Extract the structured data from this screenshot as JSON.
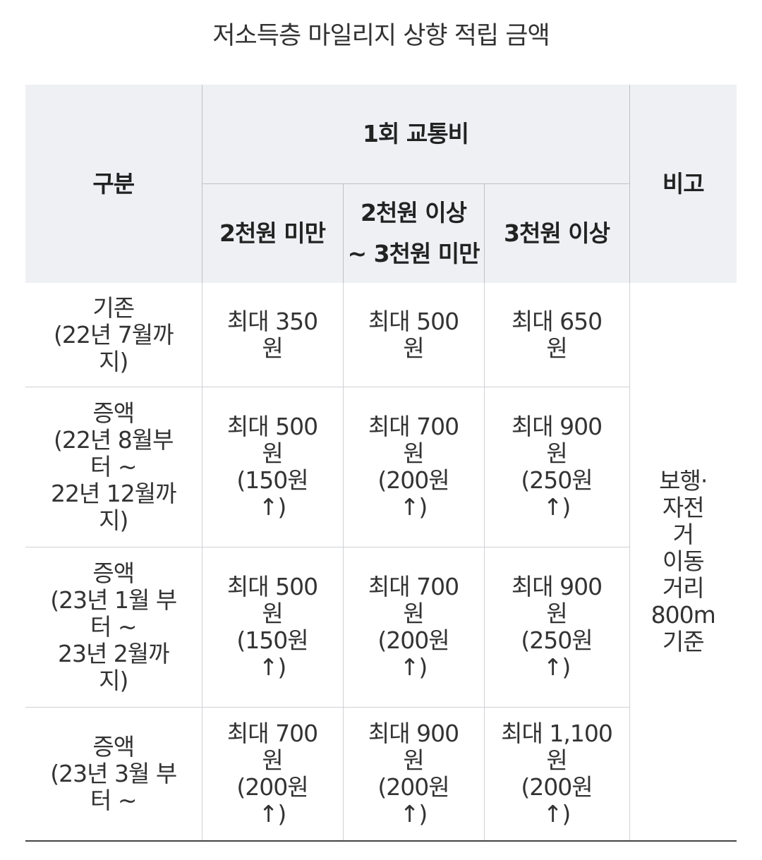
{
  "title": "저소득층 마일리지 상향 적립 금액",
  "header": {
    "category": "구분",
    "fare_group": "1회 교통비",
    "note": "비고",
    "col_under_2k": "2천원 미만",
    "col_2k_to_3k_line1": "2천원 이상",
    "col_2k_to_3k_line2": "~ 3천원 미만",
    "col_over_3k": "3천원 이상"
  },
  "rows": [
    {
      "category_lines": [
        "기존",
        "(22년 7월까",
        "지)"
      ],
      "values": [
        [
          "최대 350",
          "원"
        ],
        [
          "최대 500",
          "원"
        ],
        [
          "최대 650",
          "원"
        ]
      ]
    },
    {
      "category_lines": [
        "증액",
        "(22년 8월부",
        "터 ~",
        "22년 12월까",
        "지)"
      ],
      "values": [
        [
          "최대 500",
          "원",
          "(150원",
          "↑)"
        ],
        [
          "최대 700",
          "원",
          "(200원",
          "↑)"
        ],
        [
          "최대 900",
          "원",
          "(250원",
          "↑)"
        ]
      ]
    },
    {
      "category_lines": [
        "증액",
        "(23년 1월 부",
        "터 ~",
        "23년 2월까",
        "지)"
      ],
      "values": [
        [
          "최대 500",
          "원",
          "(150원",
          "↑)"
        ],
        [
          "최대 700",
          "원",
          "(200원",
          "↑)"
        ],
        [
          "최대 900",
          "원",
          "(250원",
          "↑)"
        ]
      ]
    },
    {
      "category_lines": [
        "증액",
        "(23년 3월 부",
        "터 ~"
      ],
      "values": [
        [
          "최대 700",
          "원",
          "(200원",
          "↑)"
        ],
        [
          "최대 900",
          "원",
          "(200원",
          "↑)"
        ],
        [
          "최대 1,100",
          "원",
          "(200원",
          "↑)"
        ]
      ]
    }
  ],
  "note_lines": [
    "보행·",
    "자전",
    "거",
    "이동",
    "거리",
    "800m",
    "기준"
  ]
}
